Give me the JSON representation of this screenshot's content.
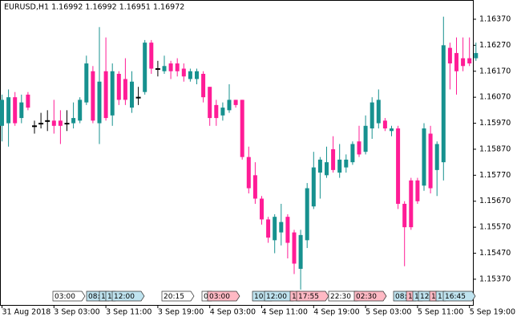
{
  "chart_data": {
    "type": "candlestick",
    "title": "EURUSD,H1  1.16992 1.16992 1.16951 1.16972",
    "categories": [
      "31 Aug 2018",
      null,
      null,
      null,
      null,
      null,
      null,
      null,
      "3 Sep 03:00",
      null,
      null,
      null,
      null,
      null,
      null,
      null,
      "3 Sep 11:00",
      null,
      null,
      null,
      null,
      null,
      null,
      null,
      "3 Sep 19:00",
      null,
      null,
      null,
      null,
      null,
      null,
      null,
      "4 Sep 03:00",
      null,
      null,
      null,
      null,
      null,
      null,
      null,
      "4 Sep 11:00",
      null,
      null,
      null,
      null,
      null,
      null,
      null,
      "4 Sep 19:00",
      null,
      null,
      null,
      null,
      null,
      null,
      null,
      "5 Sep 03:00",
      null,
      null,
      null,
      null,
      null,
      null,
      null,
      "5 Sep 11:00",
      null,
      null,
      null,
      null,
      null,
      null,
      null,
      "5 Sep 19:00",
      null
    ],
    "open": [
      1.1596,
      1.1597,
      1.1607,
      1.1599,
      1.1608,
      1.1596,
      1.1597,
      1.1598,
      1.1598,
      1.1598,
      1.1597,
      1.1597,
      1.1598,
      1.1605,
      1.1617,
      1.1597,
      1.1617,
      1.16,
      1.1616,
      1.1614,
      1.1603,
      1.1607,
      1.1609,
      1.1628,
      1.1618,
      1.1617,
      1.162,
      1.162,
      1.1618,
      1.1614,
      1.1614,
      1.1616,
      1.1611,
      1.1604,
      1.16,
      1.1602,
      1.1606,
      1.1606,
      1.1584,
      1.1577,
      1.1568,
      1.156,
      1.1552,
      1.1555,
      1.1561,
      1.1555,
      1.1541,
      1.1552,
      1.1565,
      1.1578,
      1.1577,
      1.1587,
      1.1578,
      1.158,
      1.1582,
      1.159,
      1.1586,
      1.1595,
      1.1597,
      1.1598,
      1.1594,
      1.1595,
      1.1566,
      1.1575,
      1.1575,
      1.1573,
      1.1593,
      1.1579,
      1.1582,
      1.1626,
      1.1624,
      1.1622,
      1.1622,
      1.1622
    ],
    "high": [
      1.1608,
      1.161,
      1.1609,
      1.1608,
      1.1609,
      1.1598,
      1.1601,
      1.1602,
      1.1606,
      1.1602,
      1.1602,
      1.1605,
      1.1607,
      1.1623,
      1.1619,
      1.1634,
      1.163,
      1.162,
      1.1617,
      1.1622,
      1.1617,
      1.1611,
      1.1629,
      1.1629,
      1.1621,
      1.1623,
      1.1621,
      1.1622,
      1.162,
      1.1618,
      1.1618,
      1.1617,
      1.1611,
      1.1606,
      1.1605,
      1.1612,
      1.1606,
      1.1606,
      1.1588,
      1.1582,
      1.1569,
      1.1561,
      1.1562,
      1.1566,
      1.1562,
      1.1556,
      1.1556,
      1.1574,
      1.1586,
      1.1584,
      1.1588,
      1.1592,
      1.1589,
      1.1585,
      1.159,
      1.1596,
      1.16,
      1.1607,
      1.161,
      1.1599,
      1.1596,
      1.1596,
      1.1567,
      1.1576,
      1.1576,
      1.1597,
      1.1596,
      1.159,
      1.1638,
      1.1628,
      1.163,
      1.163,
      1.163,
      1.1628
    ],
    "low": [
      1.159,
      1.1588,
      1.1596,
      1.1597,
      1.1602,
      1.1593,
      1.1595,
      1.1594,
      1.1593,
      1.1589,
      1.1594,
      1.1595,
      1.1597,
      1.1604,
      1.1597,
      1.1589,
      1.1598,
      1.1596,
      1.1604,
      1.1604,
      1.1601,
      1.1604,
      1.1608,
      1.1616,
      1.1615,
      1.1616,
      1.1614,
      1.1615,
      1.1613,
      1.1613,
      1.1612,
      1.1605,
      1.1596,
      1.1596,
      1.1598,
      1.1601,
      1.1603,
      1.1583,
      1.157,
      1.1566,
      1.1558,
      1.1551,
      1.1547,
      1.155,
      1.1545,
      1.1539,
      1.1533,
      1.1549,
      1.1564,
      1.1568,
      1.1576,
      1.1578,
      1.1576,
      1.1578,
      1.1581,
      1.1584,
      1.1585,
      1.1591,
      1.1595,
      1.1594,
      1.1592,
      1.1564,
      1.1542,
      1.1556,
      1.1566,
      1.1571,
      1.157,
      1.1569,
      1.1575,
      1.161,
      1.1608,
      1.1617,
      1.1619,
      1.1621
    ],
    "close": [
      1.1606,
      1.1607,
      1.1597,
      1.1605,
      1.1603,
      1.1596,
      1.1597,
      1.1598,
      1.1596,
      1.1596,
      1.1597,
      1.1599,
      1.1606,
      1.162,
      1.1598,
      1.1613,
      1.1599,
      1.1617,
      1.1606,
      1.1606,
      1.1613,
      1.1607,
      1.1628,
      1.1618,
      1.1618,
      1.1619,
      1.1617,
      1.1617,
      1.1615,
      1.1617,
      1.1617,
      1.1607,
      1.1599,
      1.1599,
      1.1603,
      1.1606,
      1.1604,
      1.1584,
      1.1572,
      1.1568,
      1.156,
      1.1553,
      1.1561,
      1.1559,
      1.1551,
      1.1543,
      1.1554,
      1.1572,
      1.158,
      1.1583,
      1.1582,
      1.1579,
      1.1583,
      1.1583,
      1.1589,
      1.1585,
      1.1596,
      1.1605,
      1.1606,
      1.1595,
      1.1595,
      1.1566,
      1.1557,
      1.1557,
      1.1567,
      1.1595,
      1.1572,
      1.1589,
      1.1627,
      1.162,
      1.1617,
      1.1619,
      1.162,
      1.1624
    ],
    "bull_color": "#17918f",
    "bear_color": "#ff1c96",
    "doji_color": "#000000",
    "ylim": [
      1.15271,
      1.16444
    ],
    "yticks": [
      {
        "value": 1.1637,
        "label": "1.16370"
      },
      {
        "value": 1.1627,
        "label": "1.16270"
      },
      {
        "value": 1.1617,
        "label": "1.16170"
      },
      {
        "value": 1.1607,
        "label": "1.16070"
      },
      {
        "value": 1.1597,
        "label": "1.15970"
      },
      {
        "value": 1.1587,
        "label": "1.15870"
      },
      {
        "value": 1.1577,
        "label": "1.15770"
      },
      {
        "value": 1.1567,
        "label": "1.15670"
      },
      {
        "value": 1.1557,
        "label": "1.15570"
      },
      {
        "value": 1.1547,
        "label": "1.15470"
      },
      {
        "value": 1.1537,
        "label": "1.15370"
      }
    ],
    "event_labels": [
      {
        "text": "03:00",
        "color": "#ffffff"
      },
      {
        "text": "08:",
        "color": "#bfe3ef"
      },
      {
        "text": "1",
        "color": "#bfe3ef"
      },
      {
        "text": "1",
        "color": "#bfe3ef"
      },
      {
        "text": "12:00",
        "color": "#bfe3ef"
      },
      {
        "text": "20:15",
        "color": "#ffffff"
      },
      {
        "text": "0",
        "color": "#ffffff"
      },
      {
        "text": "03:00",
        "color": "#ffb9c4"
      },
      {
        "text": "10:",
        "color": "#bfe3ef"
      },
      {
        "text": "12:00",
        "color": "#bfe3ef"
      },
      {
        "text": "1",
        "color": "#ffb9c4"
      },
      {
        "text": "17:55",
        "color": "#ffb9c4"
      },
      {
        "text": "22:30",
        "color": "#ffffff"
      },
      {
        "text": "02:30",
        "color": "#ffb9c4"
      },
      {
        "text": "08:",
        "color": "#bfe3ef"
      },
      {
        "text": "1",
        "color": "#ffb9c4"
      },
      {
        "text": "1",
        "color": "#bfe3ef"
      },
      {
        "text": "12:",
        "color": "#bfe3ef"
      },
      {
        "text": "1",
        "color": "#ffb9c4"
      },
      {
        "text": "1",
        "color": "#bfe3ef"
      },
      {
        "text": "16:45",
        "color": "#bfe3ef"
      }
    ]
  }
}
